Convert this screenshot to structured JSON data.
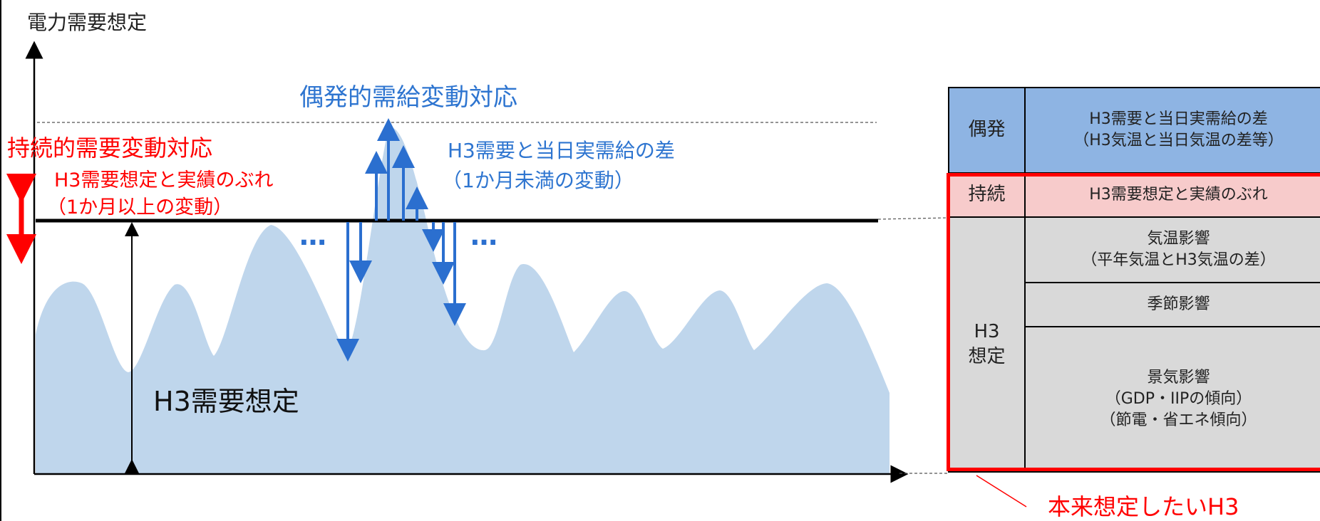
{
  "title": "電力需要想定",
  "labels": {
    "sporadic_title": "偶発的需給変動対応",
    "sporadic_desc_1": "H3需要と当日実需給の差",
    "sporadic_desc_2": "（1か月未満の変動）",
    "sustained_title": "持続的需要変動対応",
    "sustained_desc_1": "H3需要想定と実績のぶれ",
    "sustained_desc_2": "（1か月以上の変動）",
    "ellipsis_left": "…",
    "ellipsis_right": "…",
    "h3_demand": "H3需要想定",
    "callout": "本来想定したいH3"
  },
  "table": {
    "rows": [
      {
        "category": "偶発",
        "lines": [
          "H3需要と当日実需給の差",
          "（H3気温と当日気温の差等）"
        ]
      },
      {
        "category": "持続",
        "lines": [
          "H3需要想定と実績のぶれ"
        ]
      },
      {
        "category_lines": [
          "H3",
          "想定"
        ],
        "sub": [
          {
            "lines": [
              "気温影響",
              "（平年気温とH3気温の差）"
            ]
          },
          {
            "lines": [
              "季節影響"
            ]
          },
          {
            "lines": [
              "景気影響",
              "（GDP・IIPの傾向）",
              "（節電・省エネ傾向）"
            ]
          }
        ]
      }
    ]
  },
  "colors": {
    "blue_text": "#2e75d0",
    "red_text": "#ff0000",
    "area_fill": "#bfd6ec",
    "arrow_blue": "#2b6fcf",
    "cell_blue": "#8eb4e3",
    "cell_pink": "#f7cbcb",
    "cell_gray": "#d9d9d9"
  }
}
